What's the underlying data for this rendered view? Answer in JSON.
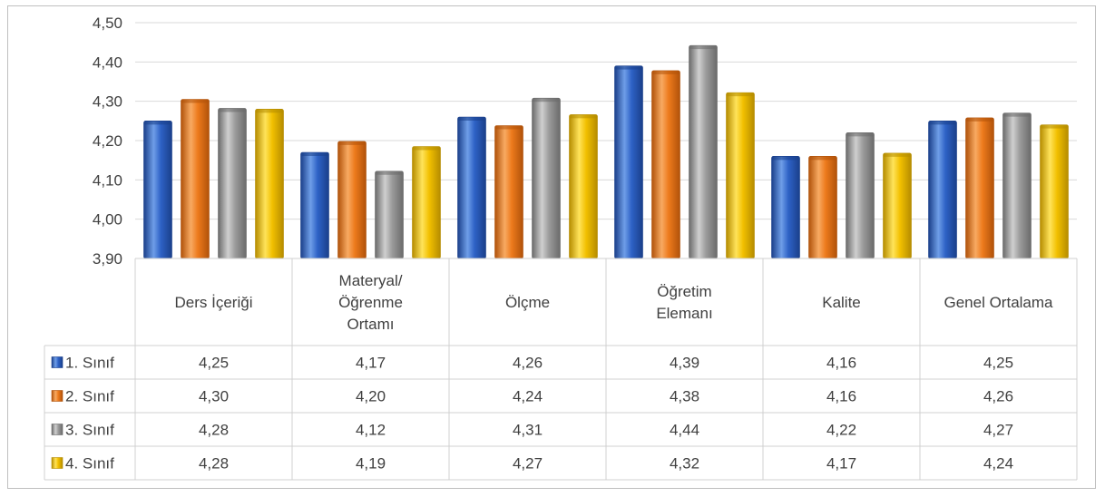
{
  "chart_data": {
    "type": "bar",
    "title": "",
    "xlabel": "",
    "ylabel": "",
    "ylim": [
      3.9,
      4.5
    ],
    "yticks": [
      "4,50",
      "4,40",
      "4,30",
      "4,20",
      "4,10",
      "4,00",
      "3,90"
    ],
    "ytick_values": [
      4.5,
      4.4,
      4.3,
      4.2,
      4.1,
      4.0,
      3.9
    ],
    "grid": true,
    "legend_placement": "data-table",
    "categories": [
      [
        "Ders İçeriği"
      ],
      [
        "Materyal/",
        "Öğrenme",
        "Ortamı"
      ],
      [
        "Ölçme"
      ],
      [
        "Öğretim",
        "Elemanı"
      ],
      [
        "Kalite"
      ],
      [
        "Genel Ortalama"
      ]
    ],
    "series": [
      {
        "name": "1. Sınıf",
        "color": "#2e62c6",
        "light": "#6f9ee8",
        "dark": "#1a3f8a",
        "values": [
          4.25,
          4.17,
          4.26,
          4.39,
          4.16,
          4.25
        ],
        "labels": [
          "4,25",
          "4,17",
          "4,26",
          "4,39",
          "4,16",
          "4,25"
        ]
      },
      {
        "name": "2. Sınıf",
        "color": "#ed7a1c",
        "light": "#f8aa62",
        "dark": "#b0520a",
        "values": [
          4.305,
          4.198,
          4.238,
          4.378,
          4.16,
          4.258
        ],
        "labels": [
          "4,30",
          "4,20",
          "4,24",
          "4,38",
          "4,16",
          "4,26"
        ]
      },
      {
        "name": "3. Sınıf",
        "color": "#9c9c9c",
        "light": "#cfcfcf",
        "dark": "#6a6a6a",
        "values": [
          4.282,
          4.122,
          4.308,
          4.442,
          4.22,
          4.27
        ],
        "labels": [
          "4,28",
          "4,12",
          "4,31",
          "4,44",
          "4,22",
          "4,27"
        ]
      },
      {
        "name": "4. Sınıf",
        "color": "#f2c000",
        "light": "#ffe35a",
        "dark": "#b58c00",
        "values": [
          4.28,
          4.185,
          4.266,
          4.322,
          4.168,
          4.24
        ],
        "labels": [
          "4,28",
          "4,19",
          "4,27",
          "4,32",
          "4,17",
          "4,24"
        ]
      }
    ]
  }
}
